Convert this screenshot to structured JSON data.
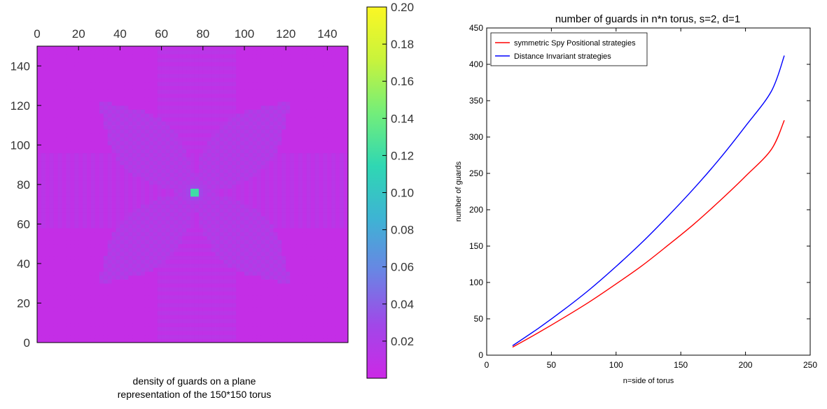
{
  "chart_data": [
    {
      "type": "heatmap",
      "caption_line1": "density of guards on a plane",
      "caption_line2": "representation of the 150*150  torus",
      "xlim": [
        0,
        150
      ],
      "ylim": [
        0,
        150
      ],
      "x_ticks": [
        "0",
        "20",
        "40",
        "60",
        "80",
        "100",
        "120",
        "140"
      ],
      "y_ticks": [
        "0",
        "20",
        "40",
        "60",
        "80",
        "100",
        "120",
        "140"
      ],
      "colorbar_ticks": [
        "0.02",
        "0.04",
        "0.06",
        "0.08",
        "0.10",
        "0.12",
        "0.14",
        "0.16",
        "0.18",
        "0.20"
      ],
      "colorbar_range": [
        0.0,
        0.2
      ],
      "colormap": [
        "#cc29e6",
        "#a147e8",
        "#6a84e4",
        "#3eb3d4",
        "#2fd7b3",
        "#73ee7a",
        "#c8f33c",
        "#fbf724"
      ],
      "features": {
        "background_value": 0.005,
        "center": [
          76,
          76
        ],
        "center_peak_value": 0.2,
        "horizontal_band_y": [
          58,
          95
        ],
        "vertical_band_x": [
          58,
          95
        ],
        "band_value": 0.01,
        "diagonal_arm_tips": [
          [
            31,
            121
          ],
          [
            121,
            121
          ],
          [
            31,
            31
          ],
          [
            121,
            31
          ]
        ]
      }
    },
    {
      "type": "line",
      "title": "number of guards in n*n torus, s=2, d=1",
      "xlabel": "n=side of torus",
      "ylabel": "number of guards",
      "xlim": [
        0,
        250
      ],
      "ylim": [
        0,
        450
      ],
      "x_ticks": [
        "0",
        "50",
        "100",
        "150",
        "200",
        "250"
      ],
      "y_ticks": [
        "0",
        "50",
        "100",
        "150",
        "200",
        "250",
        "300",
        "350",
        "400",
        "450"
      ],
      "legend_position": "top-left",
      "x": [
        20,
        40,
        60,
        80,
        100,
        120,
        140,
        160,
        180,
        200,
        220,
        230
      ],
      "series": [
        {
          "name": "symmetric Spy Positional strategies",
          "color": "#ff0000",
          "values": [
            11,
            31,
            52,
            74,
            98,
            123,
            151,
            180,
            212,
            246,
            283,
            323
          ]
        },
        {
          "name": "Distance Invariant strategies",
          "color": "#0000ff",
          "values": [
            13,
            37,
            63,
            91,
            122,
            155,
            191,
            229,
            270,
            315,
            363,
            412
          ]
        }
      ]
    }
  ]
}
